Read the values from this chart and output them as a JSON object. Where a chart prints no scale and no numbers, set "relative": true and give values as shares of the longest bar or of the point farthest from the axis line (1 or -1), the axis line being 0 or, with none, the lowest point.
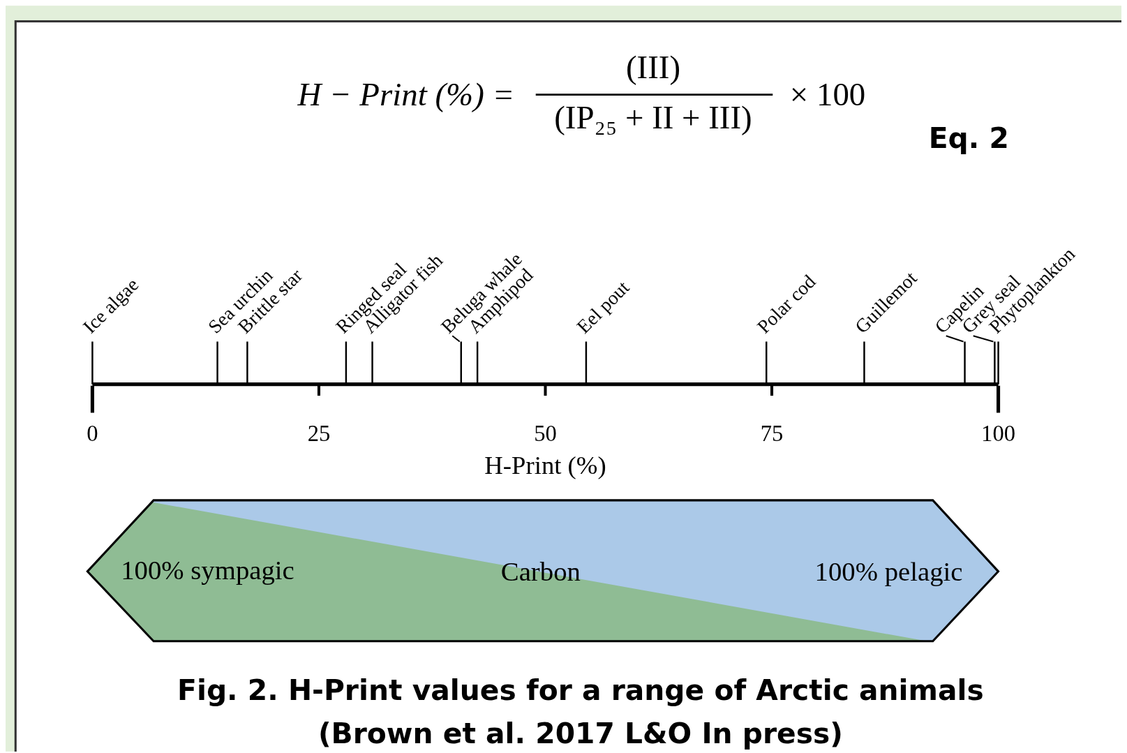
{
  "chart_data": {
    "type": "bar",
    "relative": true,
    "title": "Fig. 2.  H-Print values for a range of Arctic animals",
    "subtitle": "(Brown et al. 2017 L&O In press)",
    "xlabel": "H-Print (%)",
    "xlim": [
      0,
      100
    ],
    "xticks": [
      0,
      25,
      50,
      75,
      100
    ],
    "annotations": [
      "H − Print (%) =",
      "(III)",
      "(IP₂₅ + II + III)",
      "× 100",
      "Eq. 2",
      "100% sympagic",
      "Carbon",
      "100% pelagic"
    ],
    "series": [
      {
        "name": "Ice algae",
        "color": "#000000",
        "x": [
          0
        ],
        "values": [
          1
        ]
      },
      {
        "name": "Sea urchin",
        "color": "#000000",
        "x": [
          13.8
        ],
        "values": [
          1
        ]
      },
      {
        "name": "Brittle star",
        "color": "#000000",
        "x": [
          17.1
        ],
        "values": [
          1
        ]
      },
      {
        "name": "Ringed seal",
        "color": "#000000",
        "x": [
          28
        ],
        "values": [
          1
        ]
      },
      {
        "name": "Alligator fish",
        "color": "#000000",
        "x": [
          30.9
        ],
        "values": [
          1
        ]
      },
      {
        "name": "Beluga whale",
        "color": "#000000",
        "x": [
          40.7
        ],
        "values": [
          1
        ]
      },
      {
        "name": "Amphipod",
        "color": "#000000",
        "x": [
          42.5
        ],
        "values": [
          1
        ]
      },
      {
        "name": "Eel pout",
        "color": "#000000",
        "x": [
          54.5
        ],
        "values": [
          1
        ]
      },
      {
        "name": "Polar cod",
        "color": "#000000",
        "x": [
          74.4
        ],
        "values": [
          1
        ]
      },
      {
        "name": "Guillemot",
        "color": "#000000",
        "x": [
          85.2
        ],
        "values": [
          1
        ]
      },
      {
        "name": "Capelin",
        "color": "#000000",
        "x": [
          96.3
        ],
        "values": [
          1
        ]
      },
      {
        "name": "Grey seal",
        "color": "#000000",
        "x": [
          99.6
        ],
        "values": [
          1
        ]
      },
      {
        "name": "Phytoplankton",
        "color": "#000000",
        "x": [
          100
        ],
        "values": [
          1
        ]
      }
    ]
  }
}
